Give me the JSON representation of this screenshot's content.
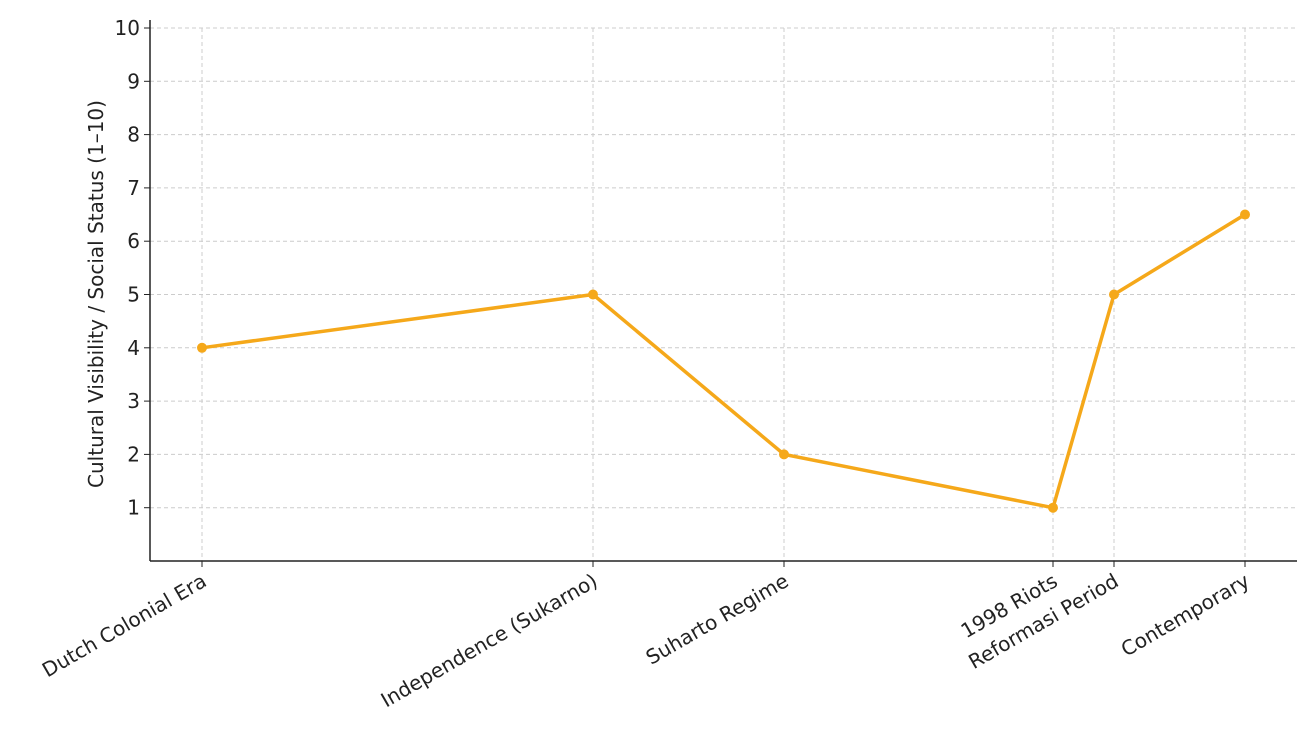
{
  "chart_data": {
    "type": "line",
    "y_label": "Cultural Visibility / Social Status (1–10)",
    "categories": [
      "Dutch Colonial Era",
      "Independence (Sukarno)",
      "Suharto Regime",
      "1998 Riots",
      "Reformasi Period",
      "Contemporary"
    ],
    "series": [
      {
        "color": "#f5a81a",
        "values": [
          4,
          5,
          2,
          1,
          5,
          6.5
        ]
      }
    ],
    "ylim": [
      0,
      10
    ],
    "yticks": [
      1,
      2,
      3,
      4,
      5,
      6,
      7,
      8,
      9,
      10
    ],
    "grid": true
  }
}
